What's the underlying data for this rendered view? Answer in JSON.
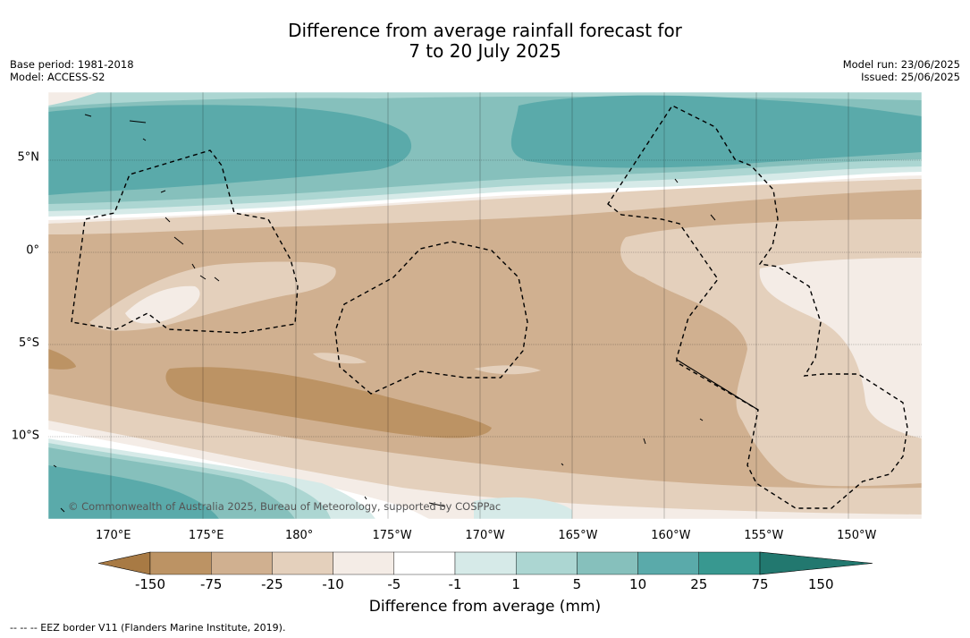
{
  "title": {
    "line1": "Difference from average rainfall forecast for",
    "line2": "7 to 20 July 2025"
  },
  "meta": {
    "base_period": "Base period: 1981-2018",
    "model": "Model: ACCESS-S2",
    "model_run": "Model run: 23/06/2025",
    "issued": "Issued: 25/06/2025"
  },
  "map": {
    "lon_range": [
      166.5,
      213.5
    ],
    "lat_range": [
      -14.5,
      8.5
    ],
    "lon_ticks": [
      {
        "label": "170°E",
        "lon": 170
      },
      {
        "label": "175°E",
        "lon": 175
      },
      {
        "label": "180°",
        "lon": 180
      },
      {
        "label": "175°W",
        "lon": 185
      },
      {
        "label": "170°W",
        "lon": 190
      },
      {
        "label": "165°W",
        "lon": 195
      },
      {
        "label": "160°W",
        "lon": 200
      },
      {
        "label": "155°W",
        "lon": 205
      },
      {
        "label": "150°W",
        "lon": 210
      }
    ],
    "lat_ticks": [
      {
        "label": "5°N",
        "lat": 5
      },
      {
        "label": "0°",
        "lat": 0
      },
      {
        "label": "5°S",
        "lat": -5
      },
      {
        "label": "10°S",
        "lat": -10
      }
    ],
    "copyright": "© Commonwealth of Australia 2025, Bureau of Meteorology, supported by COSPPac"
  },
  "colorbar": {
    "colors": [
      "#a87a44",
      "#bc9364",
      "#d0b090",
      "#e4d0bc",
      "#f4ece6",
      "#ffffff",
      "#d6eae8",
      "#acd6d2",
      "#86c0bc",
      "#5aaaaa",
      "#389890",
      "#22786f"
    ],
    "tick_labels": [
      "-150",
      "-75",
      "-25",
      "-10",
      "-5",
      "-1",
      "1",
      "5",
      "10",
      "25",
      "75",
      "150"
    ],
    "title": "Difference from average (mm)"
  },
  "footer": {
    "legend_note": "--  --  -- EEZ border V11 (Flanders Marine Institute, 2019)."
  }
}
